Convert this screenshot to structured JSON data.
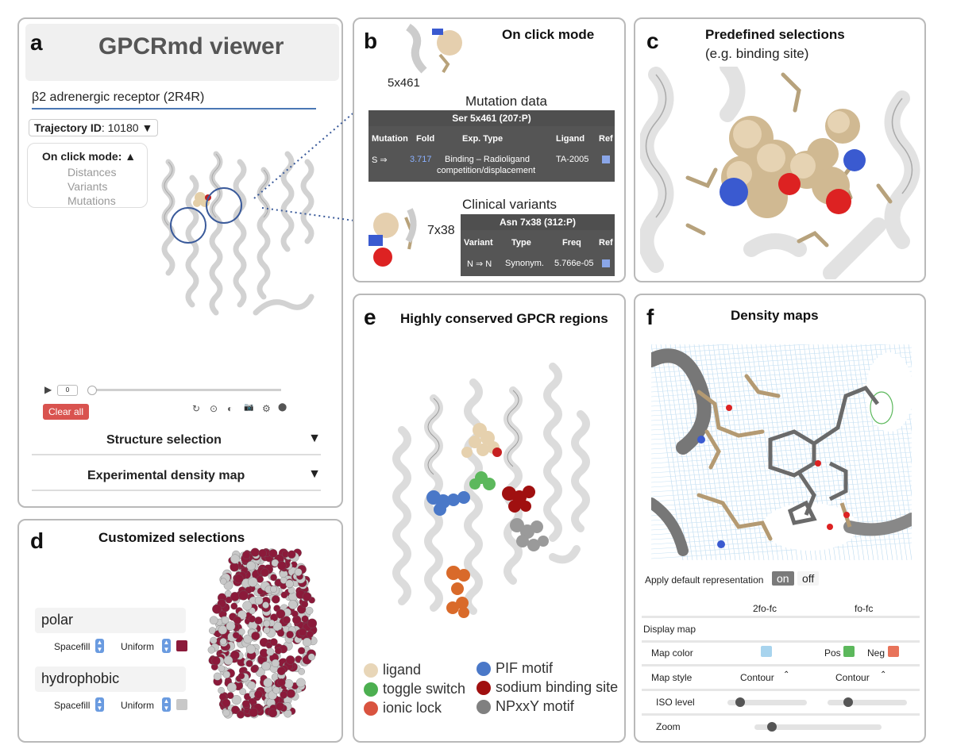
{
  "panel_a": {
    "label": "a",
    "title": "GPCRmd viewer",
    "receptor": "β2 adrenergic receptor (2R4R)",
    "trajectory_label": "Trajectory ID",
    "trajectory_value": ": 10180",
    "trajectory_arrow": "▼",
    "click_mode_label": "On click mode:",
    "click_mode_arrow": "▲",
    "click_mode_options": [
      "Distances",
      "Variants",
      "Mutations"
    ],
    "play": "▶",
    "frame": "0",
    "clear_all": "Clear all",
    "toolbar_icons": [
      "reset-icon",
      "center-icon",
      "contrast-icon",
      "camera-icon",
      "settings-icon",
      "fullscreen-icon"
    ],
    "toolbar_glyphs": [
      "↻",
      "⊙",
      "◐",
      "📷",
      "⚙",
      "⬤"
    ],
    "sections": [
      {
        "label": "Structure selection",
        "arrow": "▼"
      },
      {
        "label": "Experimental density map",
        "arrow": "▼"
      }
    ]
  },
  "panel_b": {
    "label": "b",
    "title": "On click mode",
    "residue1": "5x461",
    "mutation_title": "Mutation data",
    "mutation_table": {
      "header": "Ser 5x461 (207:P)",
      "columns": [
        "Mutation",
        "Fold",
        "Exp. Type",
        "Ligand",
        "Ref"
      ],
      "row": {
        "mutation": "S ⇒",
        "fold": "3.717",
        "exp_type_1": "Binding – Radioligand",
        "exp_type_2": "competition/displacement",
        "ligand": "TA-2005"
      }
    },
    "residue2": "7x38",
    "variants_title": "Clinical variants",
    "variants_table": {
      "header": "Asn 7x38 (312:P)",
      "columns": [
        "Variant",
        "Type",
        "Freq",
        "Ref"
      ],
      "row": {
        "variant": "N ⇒ N",
        "type": "Synonym.",
        "freq": "5.766e-05"
      }
    }
  },
  "panel_c": {
    "label": "c",
    "title": "Predefined selections",
    "subtitle": "(e.g. binding site)"
  },
  "panel_d": {
    "label": "d",
    "title": "Customized selections",
    "selections": [
      {
        "name": "polar",
        "rep": "Spacefill",
        "color_mode": "Uniform",
        "color": "#8b1a3a"
      },
      {
        "name": "hydrophobic",
        "rep": "Spacefill",
        "color_mode": "Uniform",
        "color": "#c8c8c8"
      }
    ]
  },
  "panel_e": {
    "label": "e",
    "title": "Highly conserved GPCR regions",
    "legend": [
      {
        "label": "ligand",
        "color": "#e8d6b8"
      },
      {
        "label": "toggle switch",
        "color": "#4caf50"
      },
      {
        "label": "ionic lock",
        "color": "#d9533f"
      },
      {
        "label": "PIF motif",
        "color": "#4a78c8"
      },
      {
        "label": "sodium binding site",
        "color": "#a01010"
      },
      {
        "label": "NPxxY motif",
        "color": "#808080"
      }
    ]
  },
  "panel_f": {
    "label": "f",
    "title": "Density maps",
    "apply_label": "Apply default representation",
    "toggle_on": "on",
    "toggle_off": "off",
    "col_2fo": "2fo-fc",
    "col_fo": "fo-fc",
    "rows": {
      "display": "Display map",
      "color": "Map color",
      "style": "Map style",
      "iso": "ISO level",
      "zoom": "Zoom"
    },
    "color_2fo": "#a8d4ee",
    "pos_label": "Pos",
    "pos_color": "#5cb85c",
    "neg_label": "Neg",
    "neg_color": "#e8735a",
    "style_2fo": "Contour",
    "style_fo": "Contour",
    "iso_2fo": 0.1,
    "iso_fo": 0.2,
    "zoom": 0.1
  }
}
